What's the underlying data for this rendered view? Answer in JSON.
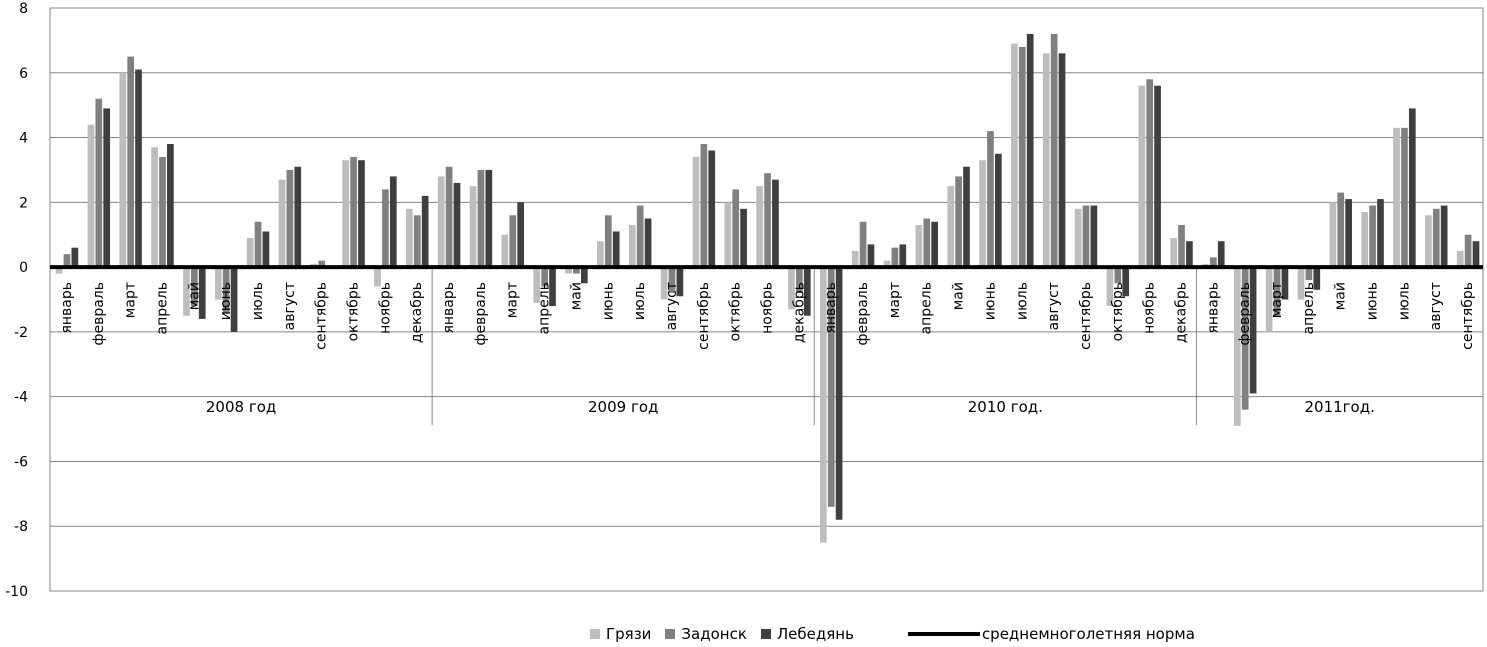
{
  "chart_data": {
    "type": "bar",
    "title": "",
    "xlabel": "",
    "ylabel": "",
    "ylim": [
      -10,
      8
    ],
    "yticks": [
      -10,
      -8,
      -6,
      -4,
      -2,
      0,
      2,
      4,
      6,
      8
    ],
    "grid": true,
    "legend_position": "bottom",
    "colors": {
      "Грязи": "#bdbdbd",
      "Задонск": "#808080",
      "Лебедянь": "#3f3f3f",
      "norm": "#000000"
    },
    "groups": [
      {
        "label": "2008 год",
        "months": [
          "январь",
          "февраль",
          "март",
          "апрель",
          "май",
          "июнь",
          "июль",
          "август",
          "сентябрь",
          "октябрь",
          "ноябрь",
          "декабрь"
        ]
      },
      {
        "label": "2009 год",
        "months": [
          "январь",
          "февраль",
          "март",
          "апрель",
          "май",
          "июнь",
          "июль",
          "август",
          "сентябрь",
          "октябрь",
          "ноябрь",
          "декабрь"
        ]
      },
      {
        "label": "2010 год.",
        "months": [
          "январь",
          "февраль",
          "март",
          "апрель",
          "май",
          "июнь",
          "июль",
          "август",
          "сентябрь",
          "октябрь",
          "ноябрь",
          "декабрь"
        ]
      },
      {
        "label": "2011год.",
        "months": [
          "январь",
          "февраль",
          "март",
          "апрель",
          "май",
          "июнь",
          "июль",
          "август",
          "сентябрь"
        ]
      }
    ],
    "series": [
      {
        "name": "Грязи",
        "values": [
          -0.2,
          4.4,
          6.0,
          3.7,
          -1.5,
          -1.0,
          0.9,
          2.7,
          0.1,
          3.3,
          -0.6,
          1.8,
          2.8,
          2.5,
          1.0,
          -1.1,
          -0.2,
          0.8,
          1.3,
          -1.0,
          3.4,
          2.0,
          2.5,
          -1.3,
          -8.5,
          0.5,
          0.2,
          1.3,
          2.5,
          3.3,
          6.9,
          6.6,
          1.8,
          -1.2,
          5.6,
          0.9,
          0.1,
          -4.9,
          -2.0,
          -1.0,
          2.0,
          1.7,
          4.3,
          1.6,
          0.5
        ]
      },
      {
        "name": "Задонск",
        "values": [
          0.4,
          5.2,
          6.5,
          3.4,
          -1.2,
          -1.4,
          1.4,
          3.0,
          0.2,
          3.4,
          2.4,
          1.6,
          3.1,
          3.0,
          1.6,
          -0.6,
          -0.2,
          1.6,
          1.9,
          -0.8,
          3.8,
          2.4,
          2.9,
          -0.8,
          -7.4,
          1.4,
          0.6,
          1.5,
          2.8,
          4.2,
          6.8,
          7.2,
          1.9,
          -0.5,
          5.8,
          1.3,
          0.3,
          -4.4,
          -1.5,
          -0.4,
          2.3,
          1.9,
          4.3,
          1.8,
          1.0
        ]
      },
      {
        "name": "Лебедянь",
        "values": [
          0.6,
          4.9,
          6.1,
          3.8,
          -1.6,
          -2.0,
          1.1,
          3.1,
          0.0,
          3.3,
          2.8,
          2.2,
          2.6,
          3.0,
          2.0,
          -1.2,
          -0.5,
          1.1,
          1.5,
          -0.9,
          3.6,
          1.8,
          2.7,
          -1.5,
          -7.8,
          0.7,
          0.7,
          1.4,
          3.1,
          3.5,
          7.2,
          6.6,
          1.9,
          -0.9,
          5.6,
          0.8,
          0.8,
          -3.9,
          -1.0,
          -0.7,
          2.1,
          2.1,
          4.9,
          1.9,
          0.8
        ]
      }
    ],
    "norm_label": "среднемноголетняя  норма",
    "norm_value": 0
  }
}
